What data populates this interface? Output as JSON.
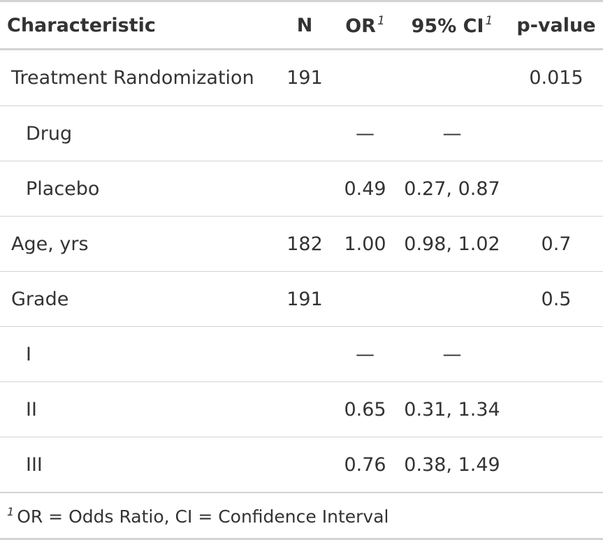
{
  "table": {
    "headers": {
      "characteristic": "Characteristic",
      "n": "N",
      "or": "OR",
      "ci": "95% CI",
      "p": "p-value",
      "footnote_marker": "1"
    },
    "rows": [
      {
        "label": "Treatment Randomization",
        "n": "191",
        "or": "",
        "ci": "",
        "p": "0.015"
      },
      {
        "label": "Drug",
        "n": "",
        "or": "—",
        "ci": "—",
        "p": ""
      },
      {
        "label": "Placebo",
        "n": "",
        "or": "0.49",
        "ci": "0.27, 0.87",
        "p": ""
      },
      {
        "label": "Age, yrs",
        "n": "182",
        "or": "1.00",
        "ci": "0.98, 1.02",
        "p": "0.7"
      },
      {
        "label": "Grade",
        "n": "191",
        "or": "",
        "ci": "",
        "p": "0.5"
      },
      {
        "label": "I",
        "n": "",
        "or": "—",
        "ci": "—",
        "p": ""
      },
      {
        "label": "II",
        "n": "",
        "or": "0.65",
        "ci": "0.31, 1.34",
        "p": ""
      },
      {
        "label": "III",
        "n": "",
        "or": "0.76",
        "ci": "0.38, 1.49",
        "p": ""
      }
    ],
    "footnote": {
      "marker": "1",
      "text": "OR = Odds Ratio, CI = Confidence Interval"
    }
  }
}
